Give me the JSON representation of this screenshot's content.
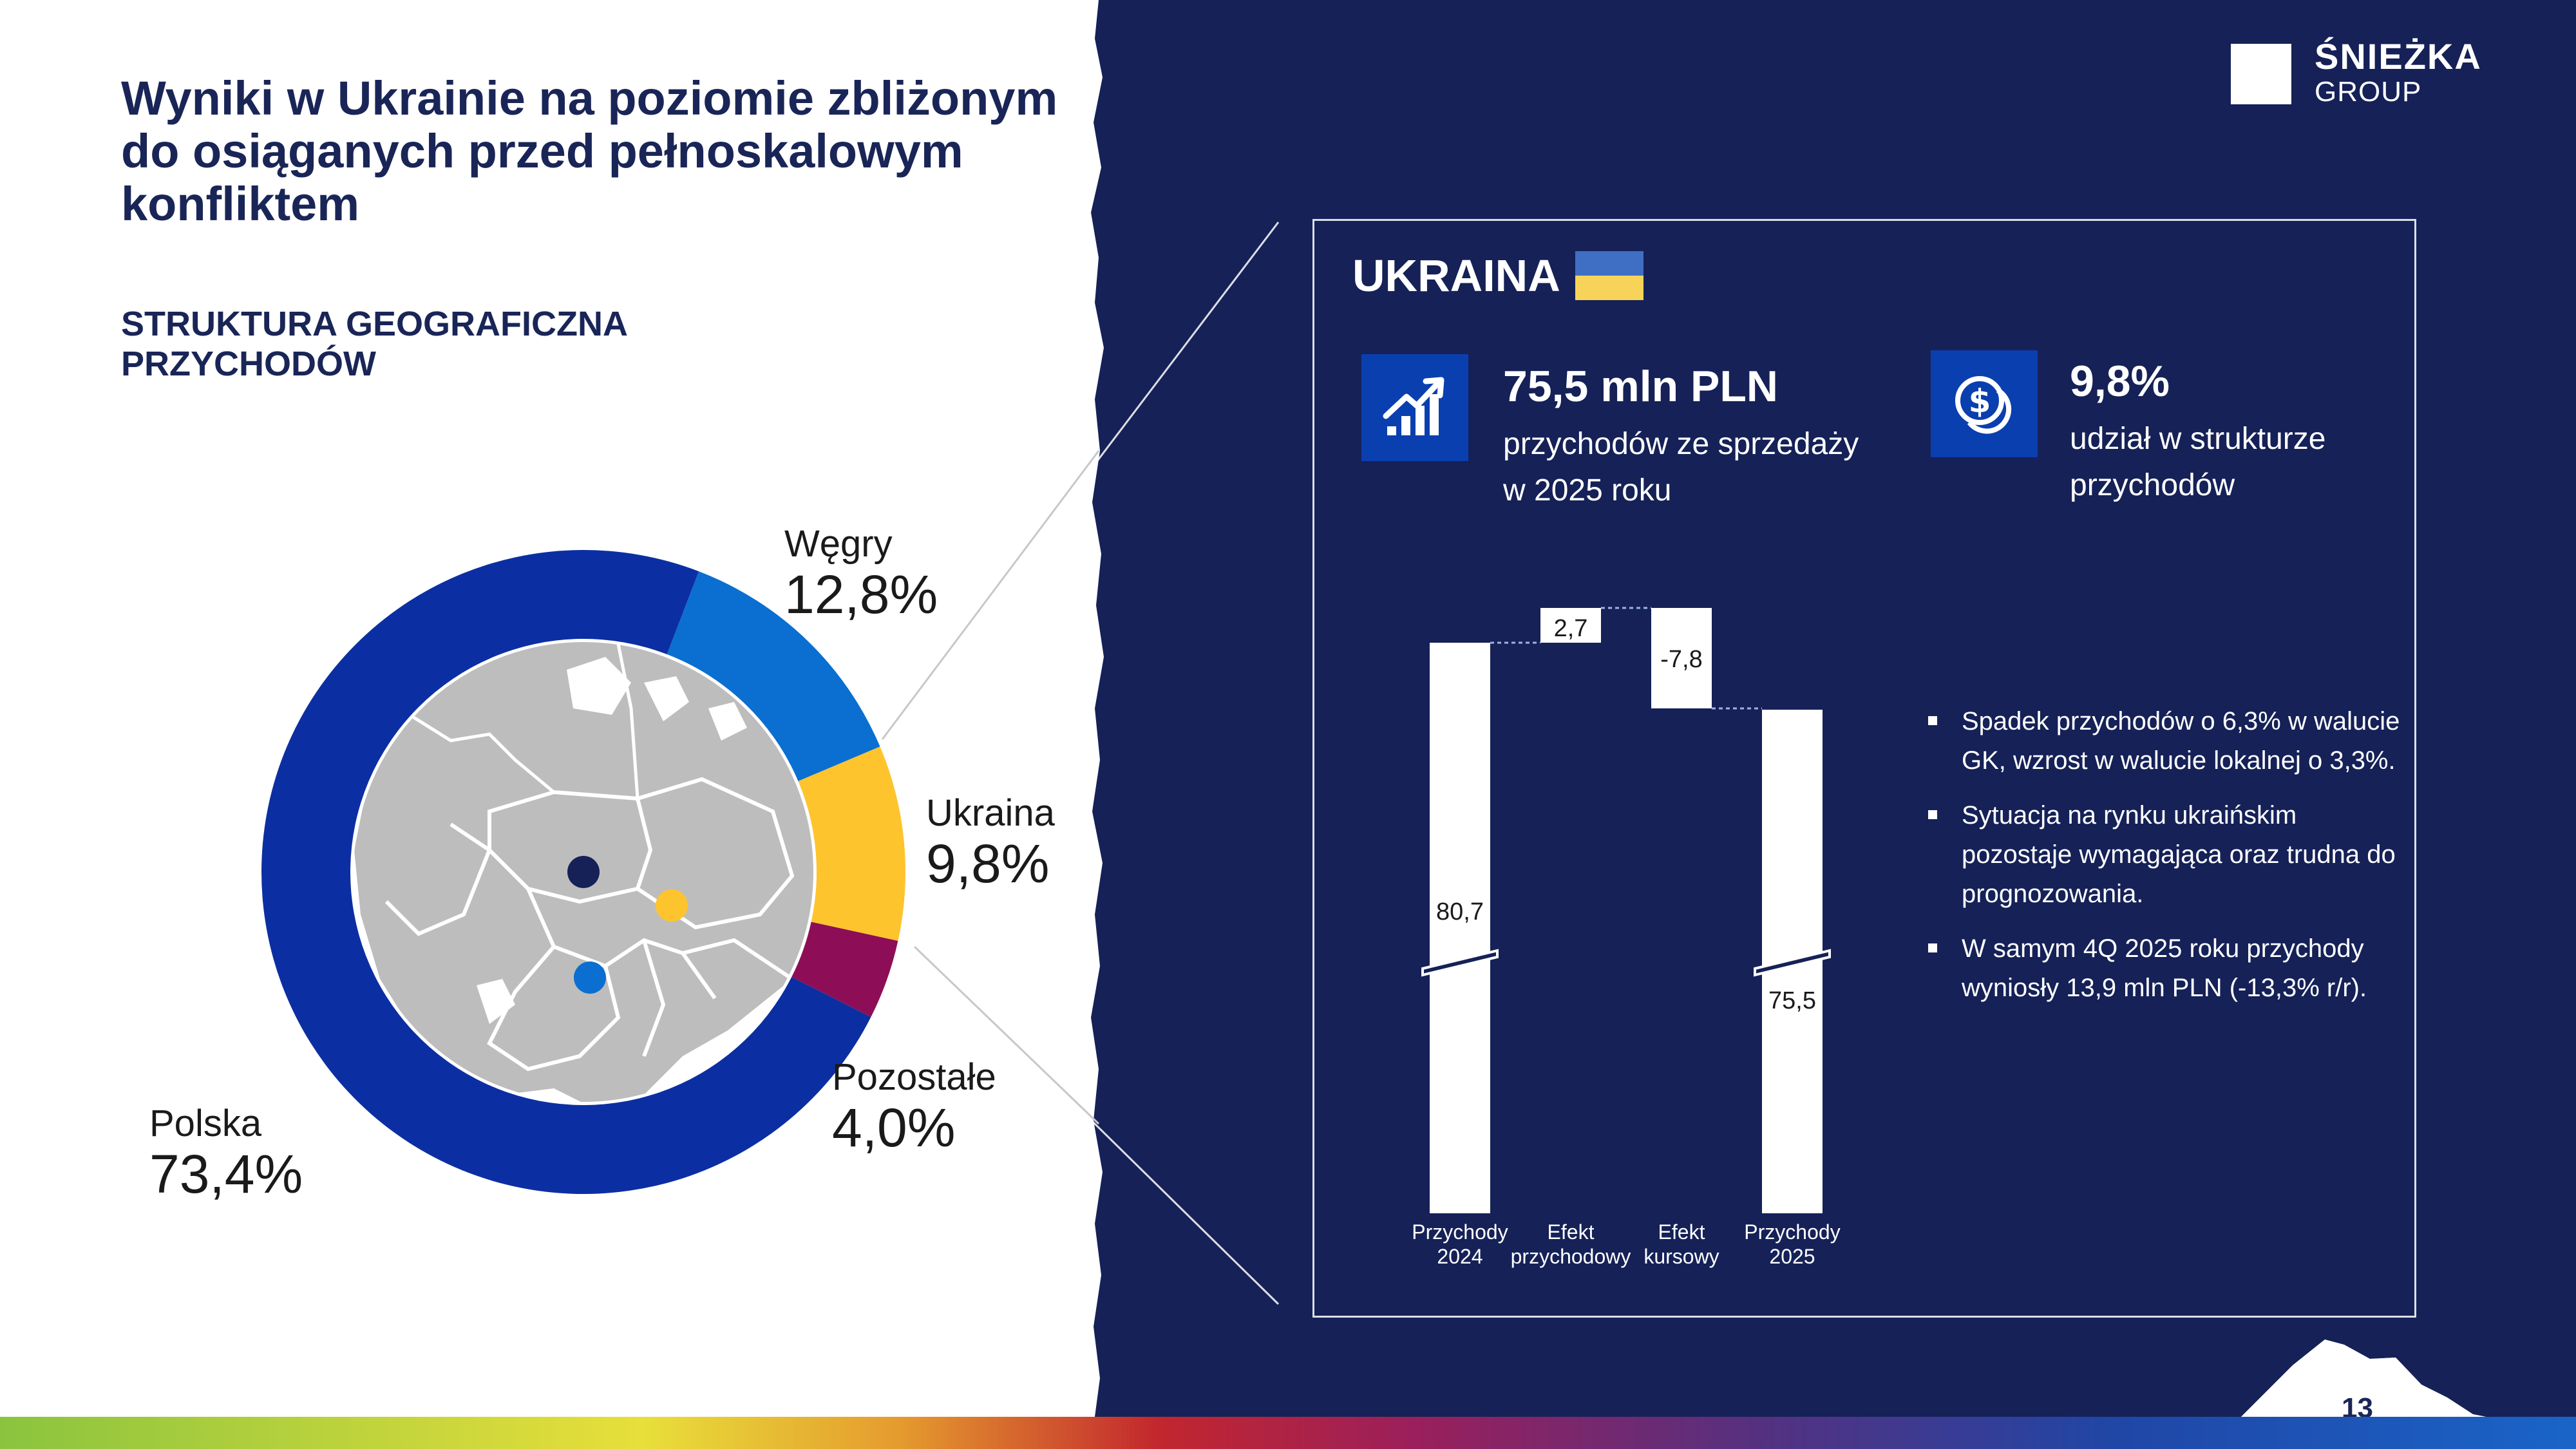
{
  "header": {
    "title": "Wyniki w Ukrainie na poziomie zbliżonym do osiąganych przed pełnoskalowym konfliktem",
    "subtitle": "STRUKTURA GEOGRAFICZNA PRZYCHODÓW"
  },
  "logo": {
    "name": "ŚNIEŻKA",
    "sub": "GROUP"
  },
  "colors": {
    "navy": "#152157",
    "polska": "#0b2fa2",
    "wegry": "#0a6fd0",
    "ukraina": "#fec42d",
    "pozostale": "#8d0e56"
  },
  "pie_labels": {
    "polska": {
      "name": "Polska",
      "pct": "73,4%"
    },
    "wegry": {
      "name": "Węgry",
      "pct": "12,8%"
    },
    "ukraina": {
      "name": "Ukraina",
      "pct": "9,8%"
    },
    "pozostale": {
      "name": "Pozostałe",
      "pct": "4,0%"
    }
  },
  "panel": {
    "country": "UKRAINA",
    "kpi1": {
      "icon": "growth-chart-icon",
      "value": "75,5 mln PLN",
      "desc1": "przychodów ze sprzedaży",
      "desc2": "w 2025 roku"
    },
    "kpi2": {
      "icon": "coins-icon",
      "value": "9,8%",
      "desc1": "udział w strukturze",
      "desc2": "przychodów"
    },
    "bullets": [
      "Spadek przychodów o 6,3% w walucie GK, wzrost w walucie lokalnej o 3,3%.",
      "Sytuacja na rynku ukraińskim pozostaje wymagająca oraz trudna do prognozowania.",
      "W samym 4Q 2025 roku przychody wyniosły 13,9 mln PLN (-13,3% r/r)."
    ]
  },
  "page": {
    "number": "13"
  },
  "chart_data": [
    {
      "type": "pie",
      "variant": "donut",
      "title": "STRUKTURA GEOGRAFICZNA PRZYCHODÓW",
      "categories": [
        "Polska",
        "Węgry",
        "Ukraina",
        "Pozostałe"
      ],
      "values": [
        73.4,
        12.8,
        9.8,
        4.0
      ],
      "value_labels": [
        "73,4%",
        "12,8%",
        "9,8%",
        "4,0%"
      ],
      "colors": [
        "#0b2fa2",
        "#0a6fd0",
        "#fec42d",
        "#8d0e56"
      ]
    },
    {
      "type": "bar",
      "variant": "waterfall",
      "axis_break": true,
      "categories": [
        "Przychody 2024",
        "Efekt przychodowy",
        "Efekt kursowy",
        "Przychody 2025"
      ],
      "category_lines": [
        [
          "Przychody",
          "2024"
        ],
        [
          "Efekt",
          "przychodowy"
        ],
        [
          "Efekt",
          "kursowy"
        ],
        [
          "Przychody",
          "2025"
        ]
      ],
      "values": [
        80.7,
        2.7,
        -7.8,
        75.5
      ],
      "value_labels": [
        "80,7",
        "2,7",
        "-7,8",
        "75,5"
      ],
      "measure": [
        "total",
        "relative",
        "relative",
        "total"
      ],
      "unit": "mln PLN"
    }
  ]
}
